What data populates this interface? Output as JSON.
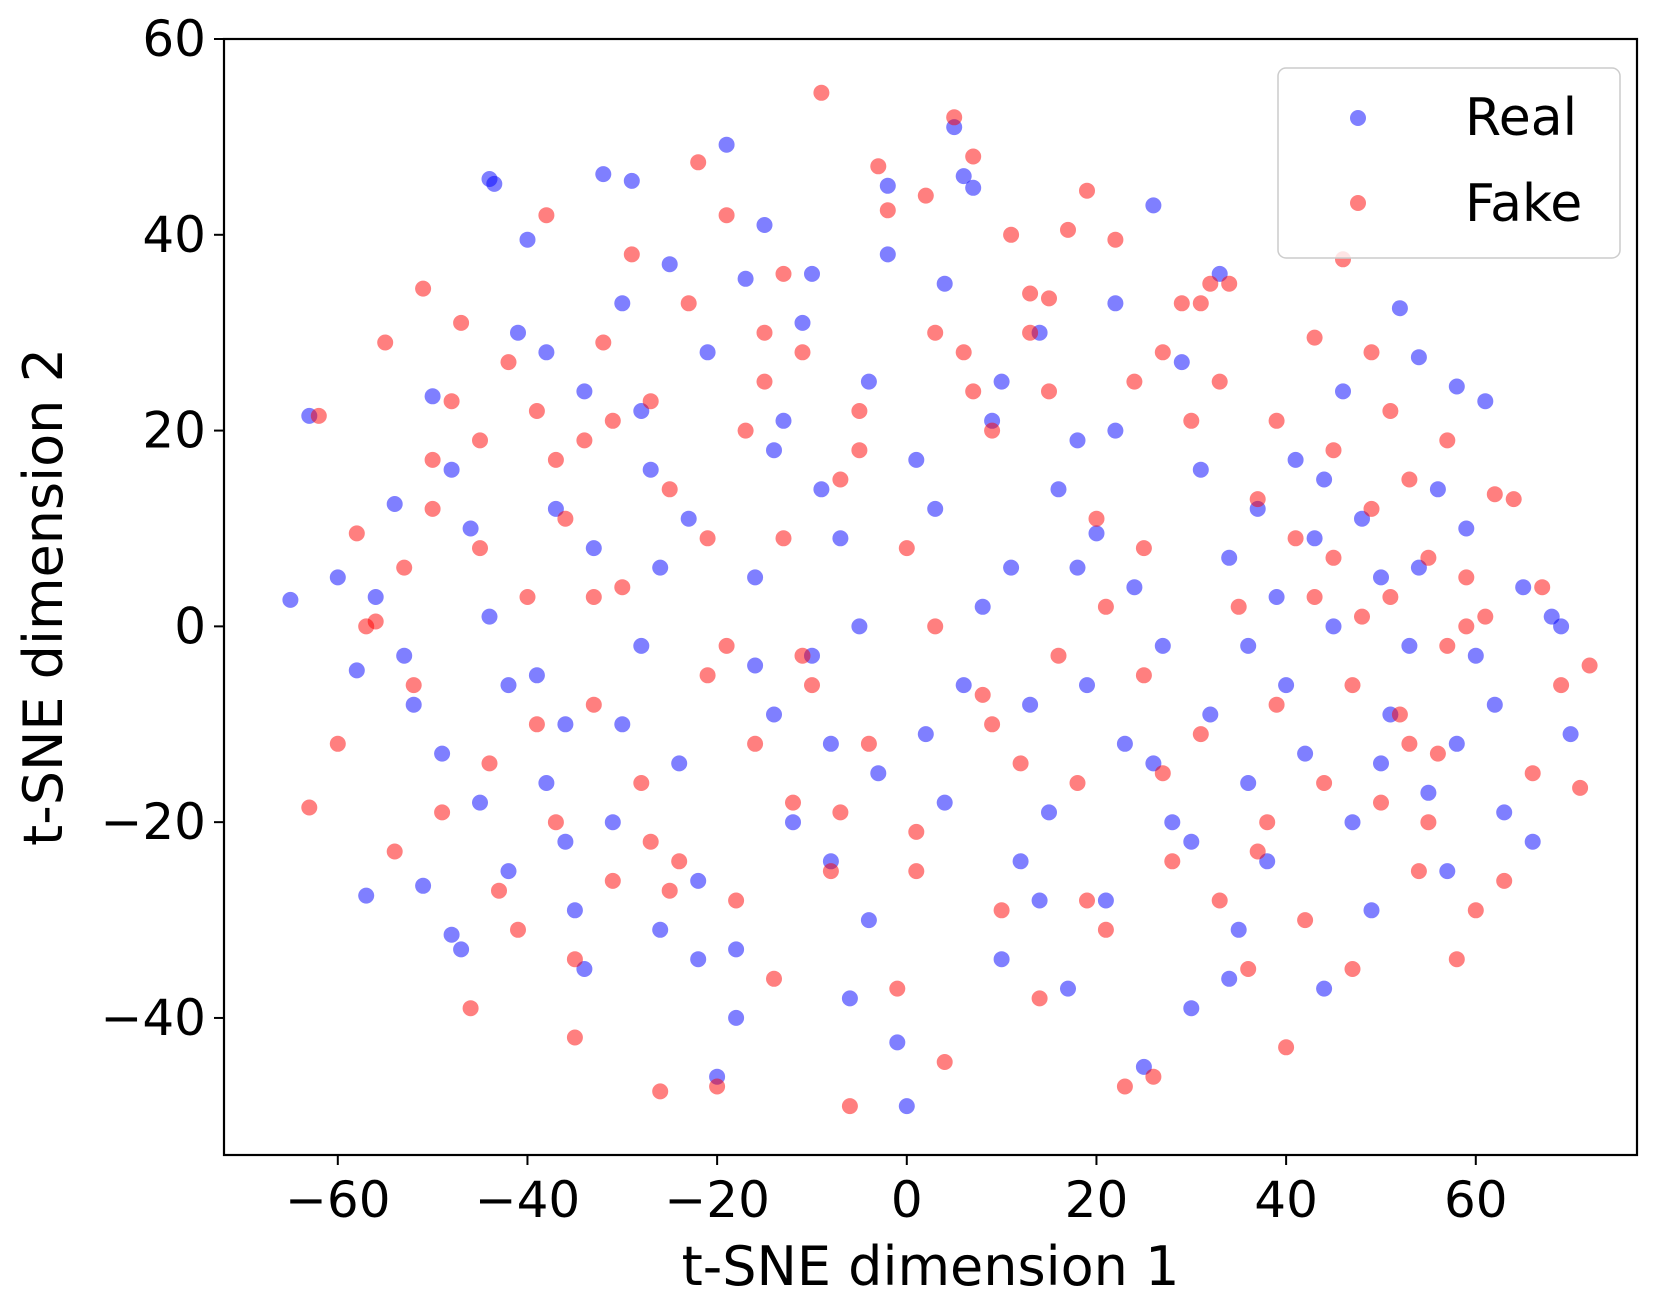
{
  "chart_data": {
    "type": "scatter",
    "title": "",
    "xlabel": "t-SNE dimension 1",
    "ylabel": "t-SNE dimension 2",
    "xlim": [
      -72,
      77
    ],
    "ylim": [
      -54,
      60
    ],
    "xticks": [
      -60,
      -40,
      -20,
      0,
      20,
      40,
      60
    ],
    "xtick_labels": [
      "−60",
      "−40",
      "−20",
      "0",
      "20",
      "40",
      "60"
    ],
    "yticks": [
      -40,
      -20,
      0,
      20,
      40,
      60
    ],
    "ytick_labels": [
      "−40",
      "−20",
      "0",
      "20",
      "40",
      "60"
    ],
    "grid": false,
    "legend_position": "top-right",
    "marker_alpha": 0.5,
    "series": [
      {
        "name": "Real",
        "color": "#0000ff",
        "points": [
          [
            -65,
            2.7
          ],
          [
            -63,
            21.5
          ],
          [
            -60,
            5
          ],
          [
            -58,
            -4.5
          ],
          [
            -57,
            -27.5
          ],
          [
            -56,
            3
          ],
          [
            -54,
            12.5
          ],
          [
            -53,
            -3
          ],
          [
            -51,
            -26.5
          ],
          [
            -50,
            23.5
          ],
          [
            -49,
            -13
          ],
          [
            -48,
            -31.5
          ],
          [
            -47,
            -33
          ],
          [
            -45,
            -18
          ],
          [
            -44,
            45.7
          ],
          [
            -43.5,
            45.2
          ],
          [
            -42,
            -25
          ],
          [
            -41,
            30
          ],
          [
            -40,
            39.5
          ],
          [
            -39,
            -5
          ],
          [
            -38,
            -16
          ],
          [
            -37,
            12
          ],
          [
            -36,
            -10
          ],
          [
            -35,
            -29
          ],
          [
            -34,
            24
          ],
          [
            -33,
            8
          ],
          [
            -32,
            46.2
          ],
          [
            -31,
            -20
          ],
          [
            -30,
            33
          ],
          [
            -29,
            45.5
          ],
          [
            -28,
            -2
          ],
          [
            -27,
            16
          ],
          [
            -26,
            -31
          ],
          [
            -25,
            37
          ],
          [
            -24,
            -14
          ],
          [
            -23,
            11
          ],
          [
            -22,
            -26
          ],
          [
            -21,
            28
          ],
          [
            -20,
            -46
          ],
          [
            -19,
            49.2
          ],
          [
            -18,
            -33
          ],
          [
            -17,
            35.5
          ],
          [
            -16,
            5
          ],
          [
            -15,
            41
          ],
          [
            -14,
            -9
          ],
          [
            -13,
            21
          ],
          [
            -12,
            -20
          ],
          [
            -11,
            31
          ],
          [
            -10,
            -3
          ],
          [
            -9,
            14
          ],
          [
            -8,
            -24
          ],
          [
            -7,
            9
          ],
          [
            -6,
            -38
          ],
          [
            -5,
            0
          ],
          [
            -4,
            25
          ],
          [
            -3,
            -15
          ],
          [
            -2,
            45
          ],
          [
            -1,
            -42.5
          ],
          [
            0,
            -49
          ],
          [
            1,
            17
          ],
          [
            2,
            -11
          ],
          [
            3,
            12
          ],
          [
            4,
            35
          ],
          [
            5,
            51
          ],
          [
            6,
            46
          ],
          [
            7,
            44.8
          ],
          [
            8,
            2
          ],
          [
            9,
            21
          ],
          [
            10,
            -34
          ],
          [
            11,
            6
          ],
          [
            12,
            -24
          ],
          [
            13,
            -8
          ],
          [
            14,
            30
          ],
          [
            15,
            -19
          ],
          [
            16,
            14
          ],
          [
            17,
            -37
          ],
          [
            18,
            19
          ],
          [
            19,
            -6
          ],
          [
            20,
            9.5
          ],
          [
            21,
            -28
          ],
          [
            22,
            33
          ],
          [
            23,
            -12
          ],
          [
            24,
            4
          ],
          [
            25,
            -45
          ],
          [
            26,
            43
          ],
          [
            27,
            -2
          ],
          [
            28,
            -20
          ],
          [
            29,
            27
          ],
          [
            30,
            -39
          ],
          [
            31,
            16
          ],
          [
            32,
            -9
          ],
          [
            33,
            36
          ],
          [
            34,
            7
          ],
          [
            35,
            -31
          ],
          [
            36,
            -16
          ],
          [
            37,
            12
          ],
          [
            38,
            -24
          ],
          [
            39,
            3
          ],
          [
            40,
            -6
          ],
          [
            41,
            17
          ],
          [
            42,
            -13
          ],
          [
            43,
            9
          ],
          [
            44,
            -37
          ],
          [
            45,
            0
          ],
          [
            46,
            24
          ],
          [
            47,
            -20
          ],
          [
            48,
            11
          ],
          [
            49,
            -29
          ],
          [
            50,
            5
          ],
          [
            51,
            -9
          ],
          [
            52,
            32.5
          ],
          [
            53,
            -2
          ],
          [
            54,
            27.5
          ],
          [
            55,
            -17
          ],
          [
            56,
            14
          ],
          [
            57,
            -25
          ],
          [
            58,
            24.5
          ],
          [
            59,
            10
          ],
          [
            60,
            -3
          ],
          [
            61,
            23
          ],
          [
            62,
            -8
          ],
          [
            63,
            -19
          ],
          [
            65,
            4
          ],
          [
            66,
            -22
          ],
          [
            68,
            1
          ],
          [
            69,
            0
          ],
          [
            70,
            -11
          ],
          [
            -46,
            10
          ],
          [
            -44,
            1
          ],
          [
            -38,
            28
          ],
          [
            -36,
            -22
          ],
          [
            -30,
            -10
          ],
          [
            -26,
            6
          ],
          [
            -18,
            -40
          ],
          [
            -14,
            18
          ],
          [
            -8,
            -12
          ],
          [
            -4,
            -30
          ],
          [
            6,
            -6
          ],
          [
            14,
            -28
          ],
          [
            22,
            20
          ],
          [
            30,
            -22
          ],
          [
            36,
            -2
          ],
          [
            44,
            15
          ],
          [
            50,
            -14
          ],
          [
            54,
            6
          ],
          [
            58,
            -12
          ],
          [
            -52,
            -8
          ],
          [
            -48,
            16
          ],
          [
            -42,
            -6
          ],
          [
            -34,
            -35
          ],
          [
            -28,
            22
          ],
          [
            -22,
            -34
          ],
          [
            -16,
            -4
          ],
          [
            -10,
            36
          ],
          [
            -2,
            38
          ],
          [
            4,
            -18
          ],
          [
            10,
            25
          ],
          [
            18,
            6
          ],
          [
            26,
            -14
          ],
          [
            34,
            -36
          ]
        ]
      },
      {
        "name": "Fake",
        "color": "#ff0000",
        "points": [
          [
            -63,
            -18.5
          ],
          [
            -62,
            21.5
          ],
          [
            -60,
            -12
          ],
          [
            -58,
            9.5
          ],
          [
            -56,
            0.5
          ],
          [
            -55,
            29
          ],
          [
            -54,
            -23
          ],
          [
            -52,
            -6
          ],
          [
            -51,
            34.5
          ],
          [
            -50,
            17
          ],
          [
            -49,
            -19
          ],
          [
            -47,
            31
          ],
          [
            -46,
            -39
          ],
          [
            -45,
            8
          ],
          [
            -44,
            -14
          ],
          [
            -42,
            27
          ],
          [
            -41,
            -31
          ],
          [
            -40,
            3
          ],
          [
            -39,
            22
          ],
          [
            -38,
            42
          ],
          [
            -37,
            -20
          ],
          [
            -36,
            11
          ],
          [
            -35,
            -42
          ],
          [
            -34,
            19
          ],
          [
            -33,
            -8
          ],
          [
            -32,
            29
          ],
          [
            -31,
            -26
          ],
          [
            -30,
            4
          ],
          [
            -29,
            38
          ],
          [
            -28,
            -16
          ],
          [
            -27,
            23
          ],
          [
            -26,
            -47.5
          ],
          [
            -25,
            14
          ],
          [
            -24,
            -24
          ],
          [
            -23,
            33
          ],
          [
            -22,
            47.4
          ],
          [
            -21,
            -5
          ],
          [
            -20,
            -47
          ],
          [
            -19,
            42
          ],
          [
            -18,
            -28
          ],
          [
            -17,
            20
          ],
          [
            -16,
            -12
          ],
          [
            -15,
            30
          ],
          [
            -14,
            -36
          ],
          [
            -13,
            9
          ],
          [
            -12,
            -18
          ],
          [
            -11,
            28
          ],
          [
            -10,
            -6
          ],
          [
            -9,
            54.5
          ],
          [
            -8,
            -25
          ],
          [
            -7,
            15
          ],
          [
            -6,
            -49
          ],
          [
            -5,
            22
          ],
          [
            -4,
            -12
          ],
          [
            -3,
            47
          ],
          [
            -2,
            42.5
          ],
          [
            -1,
            -37
          ],
          [
            0,
            8
          ],
          [
            1,
            -21
          ],
          [
            2,
            44
          ],
          [
            3,
            30
          ],
          [
            4,
            -44.5
          ],
          [
            5,
            52
          ],
          [
            6,
            28
          ],
          [
            7,
            48
          ],
          [
            8,
            -7
          ],
          [
            9,
            20
          ],
          [
            10,
            -29
          ],
          [
            11,
            40
          ],
          [
            12,
            -14
          ],
          [
            13,
            34
          ],
          [
            14,
            -38
          ],
          [
            15,
            24
          ],
          [
            16,
            -3
          ],
          [
            17,
            40.5
          ],
          [
            18,
            -16
          ],
          [
            19,
            44.5
          ],
          [
            20,
            11
          ],
          [
            21,
            -31
          ],
          [
            22,
            39.5
          ],
          [
            23,
            -47
          ],
          [
            24,
            25
          ],
          [
            25,
            -5
          ],
          [
            26,
            -46
          ],
          [
            27,
            28
          ],
          [
            28,
            -24
          ],
          [
            29,
            33
          ],
          [
            30,
            21
          ],
          [
            31,
            -11
          ],
          [
            32,
            35
          ],
          [
            33,
            -28
          ],
          [
            34,
            35
          ],
          [
            35,
            2
          ],
          [
            36,
            -35
          ],
          [
            37,
            13
          ],
          [
            38,
            -20
          ],
          [
            39,
            21
          ],
          [
            40,
            -43
          ],
          [
            41,
            9
          ],
          [
            42,
            -30
          ],
          [
            43,
            29.5
          ],
          [
            44,
            -16
          ],
          [
            45,
            18
          ],
          [
            46,
            37.5
          ],
          [
            47,
            -35
          ],
          [
            48,
            1
          ],
          [
            49,
            28
          ],
          [
            50,
            -18
          ],
          [
            51,
            22
          ],
          [
            52,
            -9
          ],
          [
            53,
            15
          ],
          [
            54,
            -25
          ],
          [
            55,
            7
          ],
          [
            56,
            -13
          ],
          [
            57,
            19
          ],
          [
            58,
            -34
          ],
          [
            59,
            5
          ],
          [
            60,
            -29
          ],
          [
            61,
            1
          ],
          [
            62,
            13.5
          ],
          [
            63,
            -26
          ],
          [
            64,
            13
          ],
          [
            66,
            -15
          ],
          [
            67,
            4
          ],
          [
            69,
            -6
          ],
          [
            71,
            -16.5
          ],
          [
            72,
            -4
          ],
          [
            -48,
            23
          ],
          [
            -43,
            -27
          ],
          [
            -37,
            17
          ],
          [
            -33,
            3
          ],
          [
            -27,
            -22
          ],
          [
            -21,
            9
          ],
          [
            -15,
            25
          ],
          [
            -11,
            -3
          ],
          [
            -5,
            18
          ],
          [
            3,
            0
          ],
          [
            9,
            -10
          ],
          [
            15,
            33.5
          ],
          [
            21,
            2
          ],
          [
            27,
            -15
          ],
          [
            33,
            25
          ],
          [
            39,
            -8
          ],
          [
            45,
            7
          ],
          [
            51,
            3
          ],
          [
            55,
            -20
          ],
          [
            59,
            0
          ],
          [
            -53,
            6
          ],
          [
            -45,
            19
          ],
          [
            -39,
            -10
          ],
          [
            -31,
            21
          ],
          [
            -25,
            -27
          ],
          [
            -19,
            -2
          ],
          [
            -13,
            36
          ],
          [
            -7,
            -19
          ],
          [
            1,
            -25
          ],
          [
            7,
            24
          ],
          [
            13,
            30
          ],
          [
            19,
            -28
          ],
          [
            25,
            8
          ],
          [
            31,
            33
          ],
          [
            37,
            -23
          ],
          [
            43,
            3
          ],
          [
            47,
            -6
          ],
          [
            49,
            12
          ],
          [
            53,
            -12
          ],
          [
            57,
            -2
          ],
          [
            -57,
            0
          ],
          [
            -50,
            12
          ],
          [
            -35,
            -34
          ]
        ]
      }
    ]
  }
}
